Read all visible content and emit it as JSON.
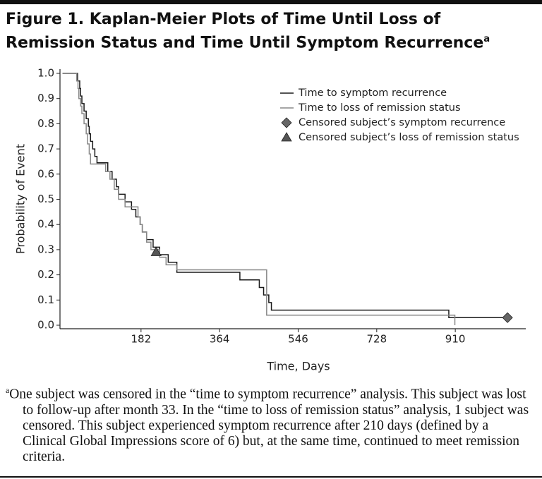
{
  "chart_data": {
    "type": "step",
    "title": "Figure 1. Kaplan-Meier Plots of Time Until Loss of Remission Status and Time Until Symptom Recurrence",
    "title_note": "a",
    "x_label": "Time, Days",
    "y_label": "Probability of Event",
    "xlim": [
      0,
      1070
    ],
    "ylim": [
      0,
      1
    ],
    "xticks": [
      182,
      364,
      546,
      728,
      910
    ],
    "yticks": [
      {
        "value": 0,
        "label": "0.0"
      },
      0.1,
      0.2,
      0.3,
      0.4,
      0.5,
      0.6,
      0.7,
      0.8,
      0.9,
      {
        "value": 1,
        "label": "1.0"
      }
    ],
    "line_shape": "hv",
    "series": [
      {
        "name": "Time to symptom recurrence",
        "color": "#1a1a1a",
        "x": [
          0,
          35,
          40,
          42,
          45,
          50,
          55,
          60,
          62,
          65,
          70,
          75,
          80,
          105,
          115,
          125,
          130,
          145,
          160,
          170,
          180,
          185,
          195,
          210,
          225,
          245,
          265,
          411,
          456,
          466,
          478,
          484,
          895,
          1031
        ],
        "values": [
          1,
          0.97,
          0.94,
          0.91,
          0.88,
          0.85,
          0.82,
          0.79,
          0.76,
          0.73,
          0.7,
          0.67,
          0.645,
          0.61,
          0.58,
          0.55,
          0.52,
          0.49,
          0.46,
          0.43,
          0.4,
          0.37,
          0.34,
          0.31,
          0.28,
          0.25,
          0.21,
          0.18,
          0.15,
          0.12,
          0.09,
          0.06,
          0.03,
          0.03
        ]
      },
      {
        "name": "Time to loss of remission status",
        "color": "#888888",
        "x": [
          0,
          33,
          36,
          38,
          42,
          45,
          50,
          55,
          58,
          62,
          65,
          100,
          110,
          120,
          130,
          145,
          175,
          180,
          185,
          195,
          205,
          225,
          240,
          265,
          473,
          909
        ],
        "values": [
          1,
          0.97,
          0.94,
          0.9,
          0.87,
          0.84,
          0.8,
          0.76,
          0.72,
          0.68,
          0.64,
          0.61,
          0.58,
          0.54,
          0.5,
          0.47,
          0.43,
          0.4,
          0.37,
          0.33,
          0.3,
          0.27,
          0.24,
          0.22,
          0.04,
          0
        ]
      },
      {
        "name": "Censored subject’s symptom recurrence",
        "color": "#666666",
        "marker": "diamond",
        "x": [
          1031
        ],
        "values": [
          0.03
        ]
      },
      {
        "name": "Censored subject’s loss of remission status",
        "color": "#555555",
        "marker": "triangle",
        "x": [
          217
        ],
        "values": [
          0.29
        ]
      }
    ],
    "footnote_marker": "a",
    "footnote": "One subject was censored in the “time to symptom recurrence” analysis. This subject was lost to follow-up after month 33. In the “time to loss of remission status” analysis, 1 subject was censored. This subject experienced symptom recurrence after 210 days (defined by a Clinical Global Impressions score of 6) but, at the same time, continued to meet remission criteria."
  }
}
